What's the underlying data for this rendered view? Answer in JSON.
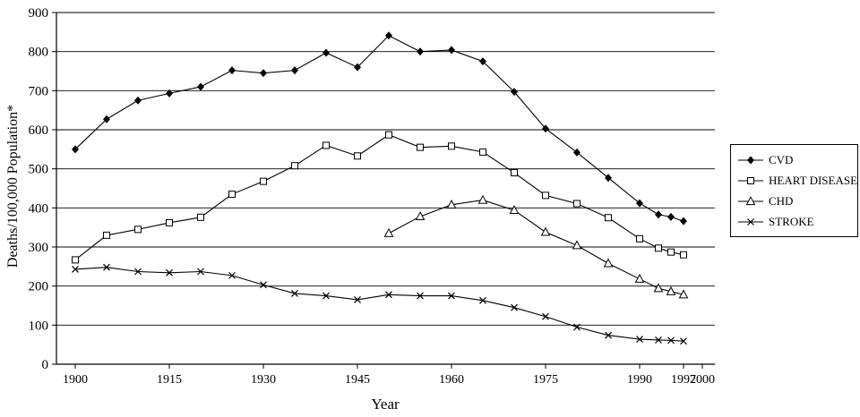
{
  "chart_data": {
    "type": "line",
    "title": "",
    "xlabel": "Year",
    "ylabel": "Deaths/100,000 Population*",
    "xlim": [
      1897,
      2002
    ],
    "ylim": [
      0,
      900
    ],
    "xticks": [
      1900,
      1915,
      1930,
      1945,
      1960,
      1975,
      1990,
      1997,
      2000
    ],
    "yticks": [
      0,
      100,
      200,
      300,
      400,
      500,
      600,
      700,
      800,
      900
    ],
    "grid": "horizontal",
    "legend_position": "right-outside",
    "line_color": "#000000",
    "series": [
      {
        "name": "CVD",
        "marker": "diamond-filled",
        "x": [
          1900,
          1905,
          1910,
          1915,
          1920,
          1925,
          1930,
          1935,
          1940,
          1945,
          1950,
          1955,
          1960,
          1965,
          1970,
          1975,
          1980,
          1985,
          1990,
          1993,
          1995,
          1997
        ],
        "y": [
          550,
          627,
          675,
          693,
          710,
          752,
          745,
          752,
          797,
          760,
          841,
          800,
          804,
          775,
          697,
          603,
          542,
          477,
          412,
          383,
          377,
          366
        ]
      },
      {
        "name": "HEART DISEASE",
        "marker": "square-open",
        "x": [
          1900,
          1905,
          1910,
          1915,
          1920,
          1925,
          1930,
          1935,
          1940,
          1945,
          1950,
          1955,
          1960,
          1965,
          1970,
          1975,
          1980,
          1985,
          1990,
          1993,
          1995,
          1997
        ],
        "y": [
          267,
          330,
          345,
          362,
          376,
          435,
          468,
          508,
          560,
          533,
          587,
          555,
          558,
          543,
          490,
          432,
          411,
          375,
          321,
          297,
          287,
          280
        ]
      },
      {
        "name": "CHD",
        "marker": "triangle-open",
        "x": [
          1950,
          1955,
          1960,
          1965,
          1970,
          1975,
          1980,
          1985,
          1990,
          1993,
          1995,
          1997
        ],
        "y": [
          335,
          378,
          408,
          420,
          394,
          338,
          304,
          258,
          218,
          194,
          186,
          178
        ]
      },
      {
        "name": "STROKE",
        "marker": "x-cross",
        "x": [
          1900,
          1905,
          1910,
          1915,
          1920,
          1925,
          1930,
          1935,
          1940,
          1945,
          1950,
          1955,
          1960,
          1965,
          1970,
          1975,
          1980,
          1985,
          1990,
          1993,
          1995,
          1997
        ],
        "y": [
          243,
          248,
          237,
          234,
          237,
          227,
          203,
          181,
          175,
          165,
          178,
          175,
          175,
          163,
          145,
          122,
          95,
          74,
          64,
          62,
          61,
          59
        ]
      }
    ]
  }
}
